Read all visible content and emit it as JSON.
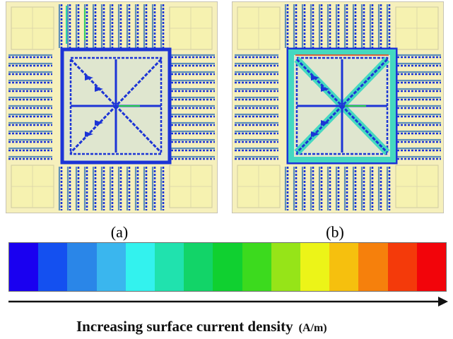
{
  "captions": {
    "a": "(a)",
    "b": "(b)"
  },
  "axis_label": {
    "text": "Increasing surface current density",
    "unit": "(A/m)"
  },
  "colors": {
    "scale": [
      "#1a00f0",
      "#1450f0",
      "#2a86e8",
      "#3ab6ee",
      "#33f2ee",
      "#20e2ae",
      "#12d468",
      "#10d030",
      "#3cda1e",
      "#96e418",
      "#ecf418",
      "#f6c00e",
      "#f6800c",
      "#f43a0a",
      "#f2040a"
    ],
    "substrate": "#f6f0bc",
    "corner_pad": "#f6f2b0",
    "arrows": "#1c34d6",
    "frame": "#b8b6b0"
  }
}
